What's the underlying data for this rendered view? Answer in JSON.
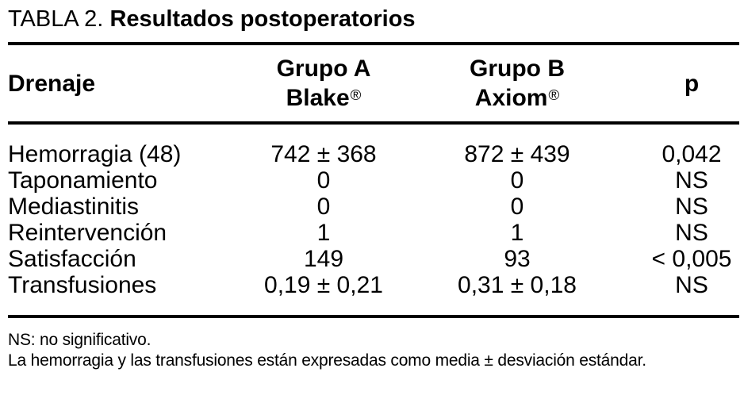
{
  "title": {
    "prefix": "TABLA 2.",
    "main": "Resultados postoperatorios"
  },
  "table": {
    "header": {
      "col1": "Drenaje",
      "col2": {
        "line1": "Grupo A",
        "name": "Blake",
        "mark": "®"
      },
      "col3": {
        "line1": "Grupo B",
        "name": "Axiom",
        "mark": "®"
      },
      "col4": "p"
    },
    "rows": [
      {
        "label": "Hemorragia (48)",
        "grupo_a": "742 ± 368",
        "grupo_b": "872 ± 439",
        "p": "0,042"
      },
      {
        "label": "Taponamiento",
        "grupo_a": "0",
        "grupo_b": "0",
        "p": "NS"
      },
      {
        "label": "Mediastinitis",
        "grupo_a": "0",
        "grupo_b": "0",
        "p": "NS"
      },
      {
        "label": "Reintervención",
        "grupo_a": "1",
        "grupo_b": "1",
        "p": "NS"
      },
      {
        "label": "Satisfacción",
        "grupo_a": "149",
        "grupo_b": "93",
        "p": "< 0,005"
      },
      {
        "label": "Transfusiones",
        "grupo_a": "0,19 ± 0,21",
        "grupo_b": "0,31 ± 0,18",
        "p": "NS"
      }
    ]
  },
  "footnotes": {
    "line1": "NS: no significativo.",
    "line2": "La hemorragia y las transfusiones están expresadas como media ± desviación estándar."
  },
  "colors": {
    "text": "#000000",
    "background": "#ffffff",
    "rule": "#000000"
  }
}
